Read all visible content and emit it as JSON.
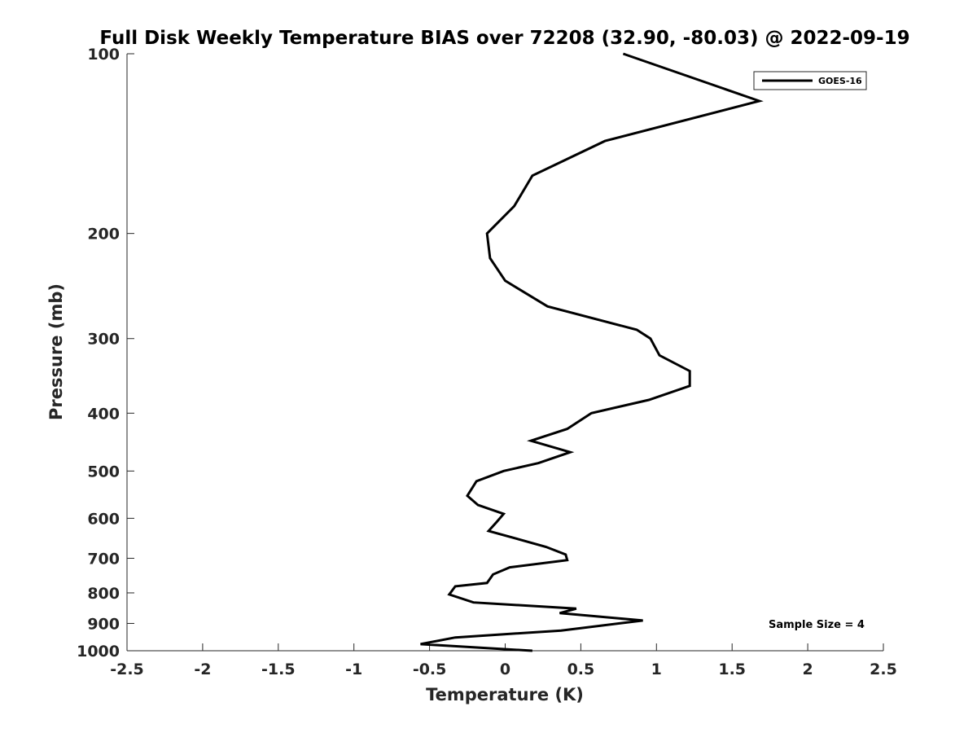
{
  "chart_data": {
    "type": "line",
    "title": "Full Disk Weekly Temperature BIAS over 72208 (32.90, -80.03) @ 2022-09-19",
    "xlabel": "Temperature (K)",
    "ylabel": "Pressure (mb)",
    "xlim": [
      -2.5,
      2.5
    ],
    "ylim": [
      100,
      1000
    ],
    "y_scale": "log",
    "y_reversed": true,
    "grid": false,
    "legend_position": "top-right",
    "annotation": "Sample Size = 4",
    "x_ticks": [
      "-2.5",
      "-2",
      "-1.5",
      "-1",
      "-0.5",
      "0",
      "0.5",
      "1",
      "1.5",
      "2",
      "2.5"
    ],
    "x_tick_values": [
      -2.5,
      -2,
      -1.5,
      -1,
      -0.5,
      0,
      0.5,
      1,
      1.5,
      2,
      2.5
    ],
    "y_ticks": [
      "100",
      "200",
      "300",
      "400",
      "500",
      "600",
      "700",
      "800",
      "900",
      "1000"
    ],
    "y_tick_values": [
      100,
      200,
      300,
      400,
      500,
      600,
      700,
      800,
      900,
      1000
    ],
    "series": [
      {
        "name": "GOES-16",
        "color": "#000000",
        "points": [
          {
            "t": 0.78,
            "p": 100
          },
          {
            "t": 1.68,
            "p": 120
          },
          {
            "t": 0.66,
            "p": 140
          },
          {
            "t": 0.18,
            "p": 160
          },
          {
            "t": 0.06,
            "p": 180
          },
          {
            "t": -0.12,
            "p": 200
          },
          {
            "t": -0.1,
            "p": 220
          },
          {
            "t": 0.0,
            "p": 240
          },
          {
            "t": 0.28,
            "p": 265
          },
          {
            "t": 0.87,
            "p": 290
          },
          {
            "t": 0.96,
            "p": 300
          },
          {
            "t": 1.02,
            "p": 320
          },
          {
            "t": 1.22,
            "p": 340
          },
          {
            "t": 1.22,
            "p": 360
          },
          {
            "t": 0.95,
            "p": 380
          },
          {
            "t": 0.57,
            "p": 400
          },
          {
            "t": 0.41,
            "p": 425
          },
          {
            "t": 0.17,
            "p": 445
          },
          {
            "t": 0.43,
            "p": 465
          },
          {
            "t": 0.22,
            "p": 485
          },
          {
            "t": -0.01,
            "p": 500
          },
          {
            "t": -0.19,
            "p": 520
          },
          {
            "t": -0.25,
            "p": 550
          },
          {
            "t": -0.18,
            "p": 570
          },
          {
            "t": -0.01,
            "p": 590
          },
          {
            "t": -0.06,
            "p": 610
          },
          {
            "t": -0.11,
            "p": 630
          },
          {
            "t": 0.27,
            "p": 670
          },
          {
            "t": 0.4,
            "p": 690
          },
          {
            "t": 0.41,
            "p": 705
          },
          {
            "t": 0.03,
            "p": 725
          },
          {
            "t": -0.08,
            "p": 745
          },
          {
            "t": -0.12,
            "p": 770
          },
          {
            "t": -0.33,
            "p": 780
          },
          {
            "t": -0.37,
            "p": 805
          },
          {
            "t": -0.21,
            "p": 830
          },
          {
            "t": 0.47,
            "p": 850
          },
          {
            "t": 0.36,
            "p": 865
          },
          {
            "t": 0.91,
            "p": 890
          },
          {
            "t": 0.37,
            "p": 925
          },
          {
            "t": -0.33,
            "p": 950
          },
          {
            "t": -0.56,
            "p": 975
          },
          {
            "t": 0.18,
            "p": 1000
          }
        ]
      }
    ]
  }
}
